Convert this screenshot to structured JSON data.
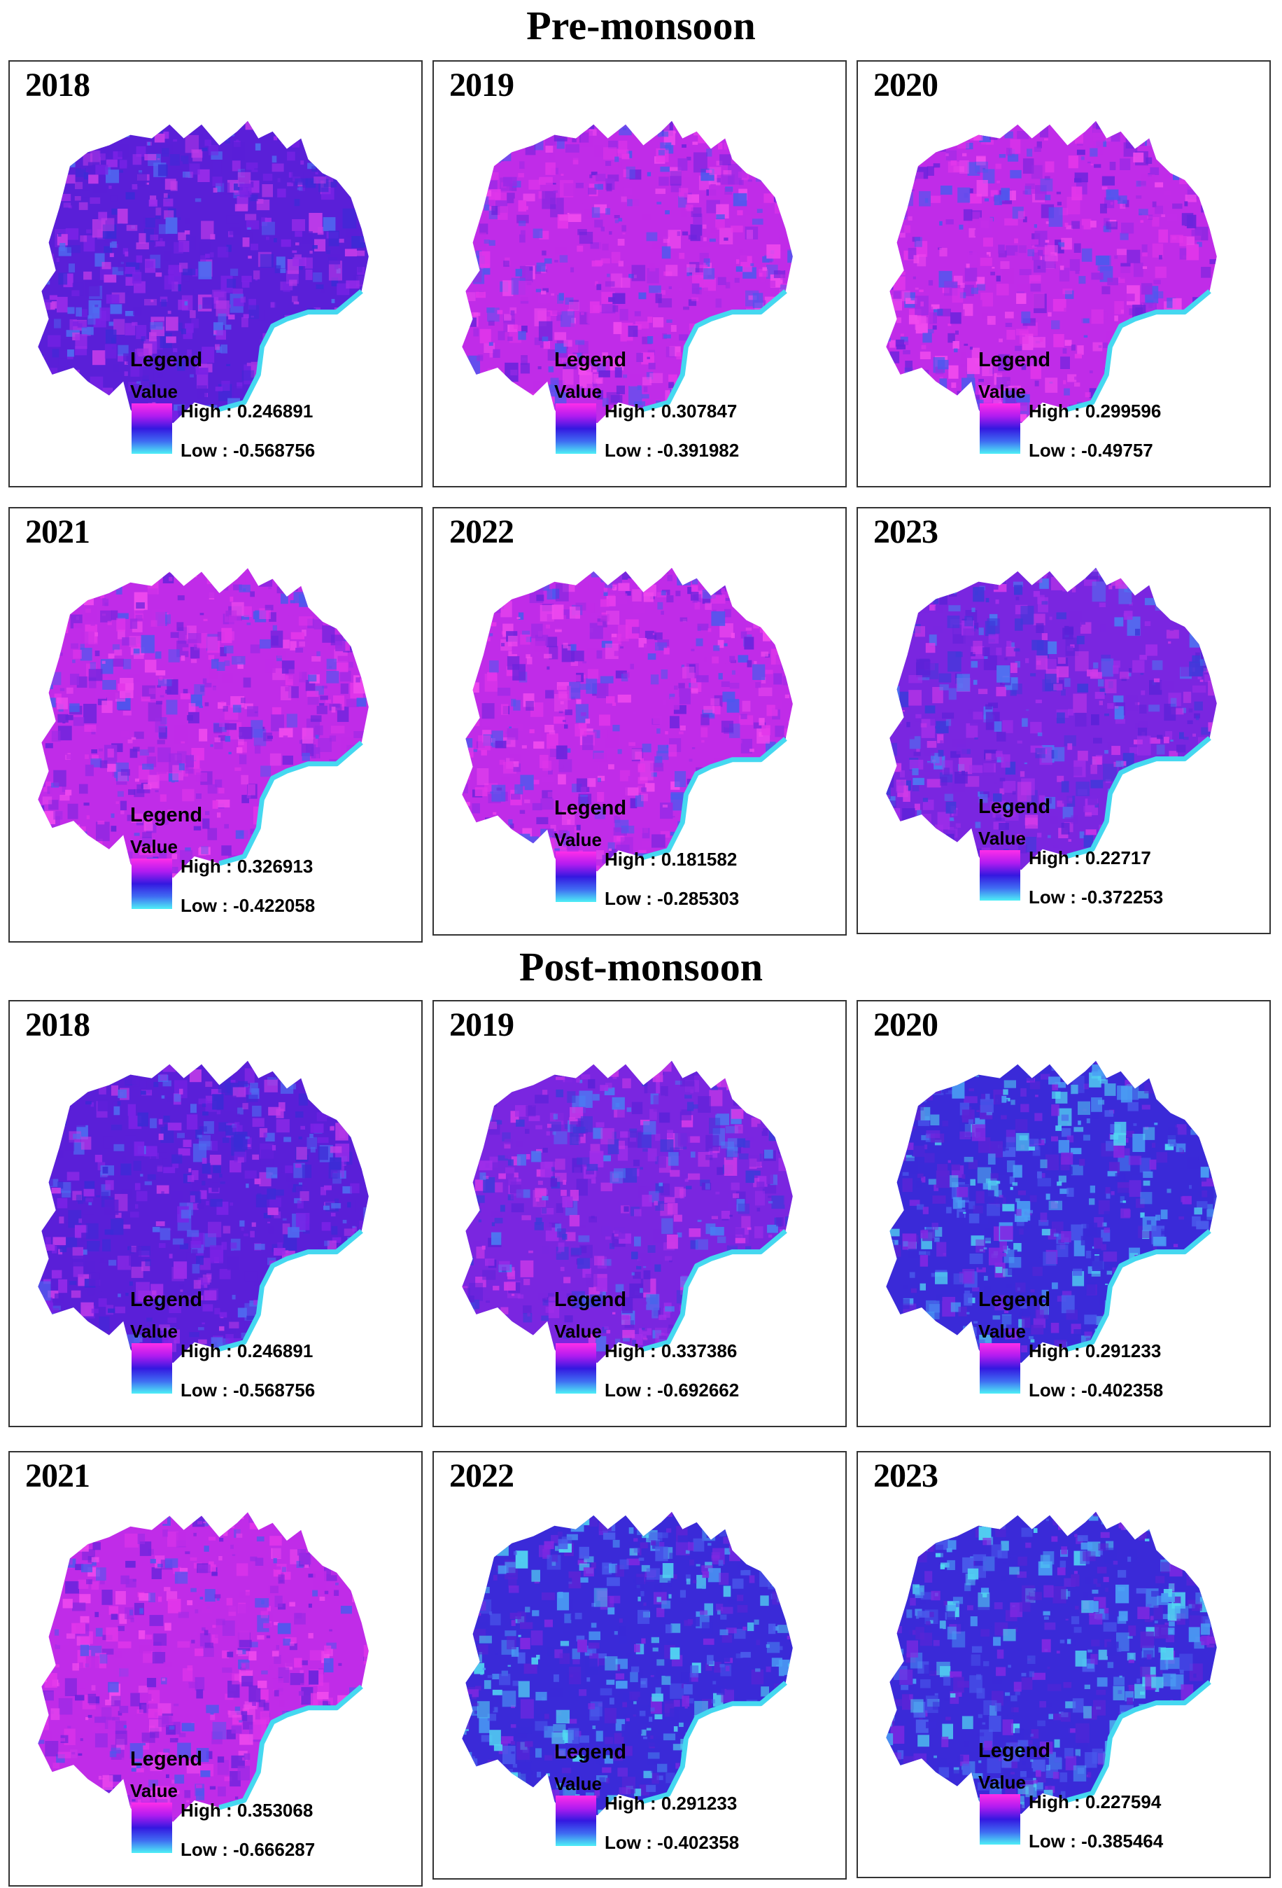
{
  "sections": [
    {
      "title": "Pre-monsoon",
      "panels": [
        {
          "year": "2018",
          "legend_title": "Legend",
          "value_label": "Value",
          "high": "High : 0.246891",
          "low": "Low : -0.568756",
          "high_value": 0.246891,
          "low_value": -0.568756,
          "tone": "violet"
        },
        {
          "year": "2019",
          "legend_title": "Legend",
          "value_label": "Value",
          "high": "High : 0.307847",
          "low": "Low : -0.391982",
          "high_value": 0.307847,
          "low_value": -0.391982,
          "tone": "magenta"
        },
        {
          "year": "2020",
          "legend_title": "Legend",
          "value_label": "Value",
          "high": "High : 0.299596",
          "low": "Low : -0.49757",
          "high_value": 0.299596,
          "low_value": -0.49757,
          "tone": "magenta"
        },
        {
          "year": "2021",
          "legend_title": "Legend",
          "value_label": "Value",
          "high": "High : 0.326913",
          "low": "Low : -0.422058",
          "high_value": 0.326913,
          "low_value": -0.422058,
          "tone": "magenta"
        },
        {
          "year": "2022",
          "legend_title": "Legend",
          "value_label": "Value",
          "high": "High : 0.181582",
          "low": "Low : -0.285303",
          "high_value": 0.181582,
          "low_value": -0.285303,
          "tone": "magenta"
        },
        {
          "year": "2023",
          "legend_title": "Legend",
          "value_label": "Value",
          "high": "High : 0.22717",
          "low": "Low : -0.372253",
          "high_value": 0.22717,
          "low_value": -0.372253,
          "tone": "purple"
        }
      ]
    },
    {
      "title": "Post-monsoon",
      "panels": [
        {
          "year": "2018",
          "legend_title": "Legend",
          "value_label": "Value",
          "high": "High : 0.246891",
          "low": "Low : -0.568756",
          "high_value": 0.246891,
          "low_value": -0.568756,
          "tone": "violet"
        },
        {
          "year": "2019",
          "legend_title": "Legend",
          "value_label": "Value",
          "high": "High : 0.337386",
          "low": "Low : -0.692662",
          "high_value": 0.337386,
          "low_value": -0.692662,
          "tone": "purple"
        },
        {
          "year": "2020",
          "legend_title": "Legend",
          "value_label": "Value",
          "high": "High : 0.291233",
          "low": "Low : -0.402358",
          "high_value": 0.291233,
          "low_value": -0.402358,
          "tone": "blue"
        },
        {
          "year": "2021",
          "legend_title": "Legend",
          "value_label": "Value",
          "high": "High : 0.353068",
          "low": "Low : -0.666287",
          "high_value": 0.353068,
          "low_value": -0.666287,
          "tone": "magenta"
        },
        {
          "year": "2022",
          "legend_title": "Legend",
          "value_label": "Value",
          "high": "High : 0.291233",
          "low": "Low : -0.402358",
          "high_value": 0.291233,
          "low_value": -0.402358,
          "tone": "blue"
        },
        {
          "year": "2023",
          "legend_title": "Legend",
          "value_label": "Value",
          "high": "High : 0.227594",
          "low": "Low : -0.385464",
          "high_value": 0.227594,
          "low_value": -0.385464,
          "tone": "blue"
        }
      ]
    }
  ],
  "colors": {
    "ramp_high": "#ff2ee8",
    "ramp_mid": "#3418e0",
    "ramp_low": "#4ef0f6",
    "river": "#45d8f0"
  }
}
